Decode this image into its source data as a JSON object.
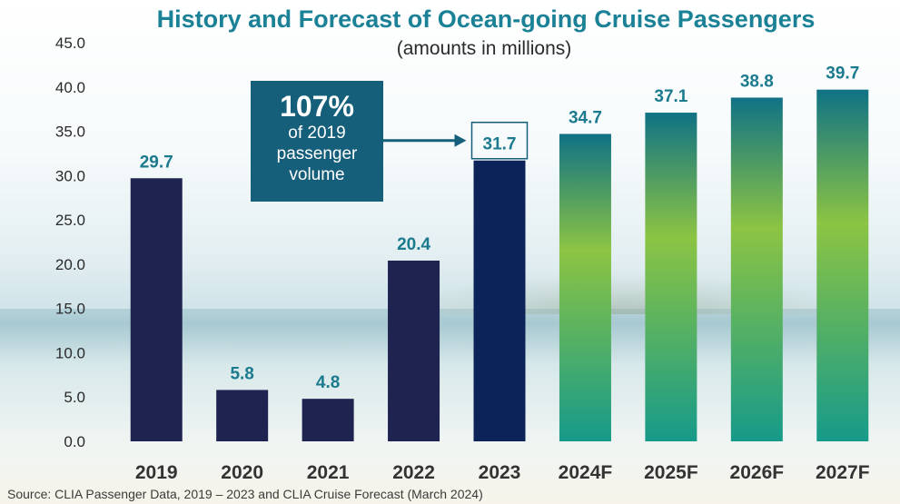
{
  "chart_data": {
    "type": "bar",
    "title": "History and Forecast of Ocean-going Cruise Passengers",
    "subtitle": "(amounts in millions)",
    "categories": [
      "2019",
      "2020",
      "2021",
      "2022",
      "2023",
      "2024F",
      "2025F",
      "2026F",
      "2027F"
    ],
    "values": [
      29.7,
      5.8,
      4.8,
      20.4,
      31.7,
      34.7,
      37.1,
      38.8,
      39.7
    ],
    "value_labels": [
      "29.7",
      "5.8",
      "4.8",
      "20.4",
      "31.7",
      "34.7",
      "37.1",
      "38.8",
      "39.7"
    ],
    "forecast": [
      false,
      false,
      false,
      false,
      false,
      true,
      true,
      true,
      true
    ],
    "ylim": [
      0,
      45
    ],
    "yticks": [
      "0.0",
      "5.0",
      "10.0",
      "15.0",
      "20.0",
      "25.0",
      "30.0",
      "35.0",
      "40.0",
      "45.0"
    ],
    "grid": false,
    "colors": {
      "history_bar": "#1f2350",
      "bar_2023": "#0b2358",
      "forecast_top": "#0f7285",
      "forecast_mid": "#8cc443",
      "forecast_bottom": "#169a8a",
      "value_label": "#1b7a8e"
    },
    "annotations": [
      {
        "big": "107%",
        "text": "of 2019\npassenger\nvolume",
        "points_to": "2023",
        "color": "#165f7a"
      }
    ]
  },
  "source_note": "Source: CLIA Passenger Data, 2019 – 2023 and CLIA Cruise Forecast  (March 2024)"
}
